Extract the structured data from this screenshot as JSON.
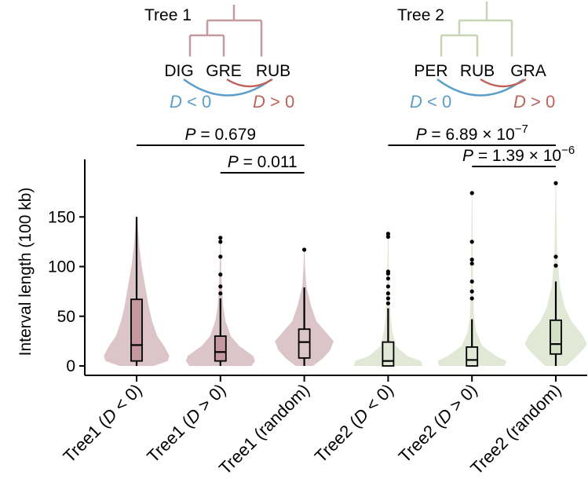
{
  "chart_data": {
    "type": "violin-box",
    "ylabel": "Interval length (100 kb)",
    "ylim": [
      -5,
      190
    ],
    "yticks": [
      0,
      50,
      100,
      150
    ],
    "grid": false,
    "categories": [
      {
        "pre": "Tree1 (",
        "it": "D",
        "post": " < 0)",
        "tree": 1
      },
      {
        "pre": "Tree1 (",
        "it": "D",
        "post": " > 0)",
        "tree": 1
      },
      {
        "pre": "Tree1 (random)",
        "it": "",
        "post": "",
        "tree": 1
      },
      {
        "pre": "Tree2 (",
        "it": "D",
        "post": " < 0)",
        "tree": 2
      },
      {
        "pre": "Tree2 (",
        "it": "D",
        "post": " > 0)",
        "tree": 2
      },
      {
        "pre": "Tree2 (random)",
        "it": "",
        "post": "",
        "tree": 2
      }
    ],
    "boxes": [
      {
        "whisker_low": 0,
        "q1": 5,
        "median": 21,
        "q3": 67,
        "whisker_high": 150,
        "outliers": []
      },
      {
        "whisker_low": 0,
        "q1": 5,
        "median": 14,
        "q3": 30,
        "whisker_high": 68,
        "outliers": [
          73,
          80,
          92,
          110,
          125,
          129
        ]
      },
      {
        "whisker_low": 0,
        "q1": 8,
        "median": 24,
        "q3": 37,
        "whisker_high": 79,
        "outliers": [
          117
        ]
      },
      {
        "whisker_low": 0,
        "q1": 0,
        "median": 5,
        "q3": 24,
        "whisker_high": 58,
        "outliers": [
          63,
          68,
          73,
          80,
          88,
          93,
          95,
          130,
          133
        ]
      },
      {
        "whisker_low": 0,
        "q1": 0,
        "median": 6,
        "q3": 19,
        "whisker_high": 47,
        "outliers": [
          68,
          75,
          85,
          103,
          107,
          125,
          174
        ]
      },
      {
        "whisker_low": 0,
        "q1": 12,
        "median": 22,
        "q3": 46,
        "whisker_high": 85,
        "outliers": [
          101,
          110,
          184
        ]
      }
    ],
    "violins": [
      [
        [
          0,
          0.5
        ],
        [
          5,
          0.9
        ],
        [
          10,
          0.95
        ],
        [
          20,
          0.8
        ],
        [
          30,
          0.6
        ],
        [
          45,
          0.45
        ],
        [
          60,
          0.35
        ],
        [
          80,
          0.25
        ],
        [
          100,
          0.15
        ],
        [
          120,
          0.08
        ],
        [
          150,
          0.01
        ]
      ],
      [
        [
          0,
          0.9
        ],
        [
          5,
          1.0
        ],
        [
          10,
          0.95
        ],
        [
          20,
          0.55
        ],
        [
          30,
          0.3
        ],
        [
          45,
          0.15
        ],
        [
          60,
          0.08
        ],
        [
          80,
          0.04
        ],
        [
          100,
          0.02
        ],
        [
          129,
          0.01
        ]
      ],
      [
        [
          0,
          0.25
        ],
        [
          8,
          0.55
        ],
        [
          16,
          0.75
        ],
        [
          25,
          0.85
        ],
        [
          35,
          0.6
        ],
        [
          45,
          0.35
        ],
        [
          60,
          0.2
        ],
        [
          80,
          0.06
        ],
        [
          100,
          0.02
        ],
        [
          117,
          0.01
        ]
      ],
      [
        [
          0,
          1.0
        ],
        [
          5,
          0.95
        ],
        [
          10,
          0.55
        ],
        [
          20,
          0.22
        ],
        [
          35,
          0.12
        ],
        [
          50,
          0.07
        ],
        [
          70,
          0.04
        ],
        [
          100,
          0.02
        ],
        [
          133,
          0.01
        ]
      ],
      [
        [
          0,
          0.95
        ],
        [
          5,
          1.0
        ],
        [
          10,
          0.7
        ],
        [
          20,
          0.3
        ],
        [
          35,
          0.12
        ],
        [
          50,
          0.06
        ],
        [
          80,
          0.03
        ],
        [
          120,
          0.02
        ],
        [
          174,
          0.01
        ]
      ],
      [
        [
          0,
          0.3
        ],
        [
          8,
          0.55
        ],
        [
          15,
          0.75
        ],
        [
          22,
          0.9
        ],
        [
          30,
          0.8
        ],
        [
          45,
          0.45
        ],
        [
          60,
          0.25
        ],
        [
          80,
          0.12
        ],
        [
          110,
          0.04
        ],
        [
          150,
          0.02
        ],
        [
          184,
          0.01
        ]
      ]
    ],
    "comparisons": [
      {
        "from": 0,
        "to": 2,
        "text": "= 0.679",
        "p_italic": "P"
      },
      {
        "from": 1,
        "to": 2,
        "text": "= 0.011",
        "p_italic": "P"
      },
      {
        "from": 3,
        "to": 5,
        "text": "= 6.89 × 10",
        "sup": "−7",
        "p_italic": "P"
      },
      {
        "from": 4,
        "to": 5,
        "text": "= 1.39 × 10",
        "sup": "−6",
        "p_italic": "P"
      }
    ],
    "colors": {
      "tree1_violin": "#dcc5c8",
      "tree1_box": "#c4989e",
      "tree1_random_box": "#dcc5c8",
      "tree2_violin": "#e1e8d6",
      "tree2_box": "#e1e8d6",
      "tree2_random_box": "#d3dfc5",
      "d_neg": "#5a9ec9",
      "d_pos": "#c0625a",
      "tree1_branch": "#c49aa0",
      "tree2_branch": "#c7d5b5"
    }
  },
  "trees": [
    {
      "title": "Tree 1",
      "leaves": [
        "DIG",
        "GRE",
        "RUB"
      ],
      "d_neg": {
        "it": "D",
        "text": " < 0"
      },
      "d_pos": {
        "it": "D",
        "text": " > 0"
      }
    },
    {
      "title": "Tree 2",
      "leaves": [
        "PER",
        "RUB",
        "GRA"
      ],
      "d_neg": {
        "it": "D",
        "text": " < 0"
      },
      "d_pos": {
        "it": "D",
        "text": " > 0"
      }
    }
  ]
}
